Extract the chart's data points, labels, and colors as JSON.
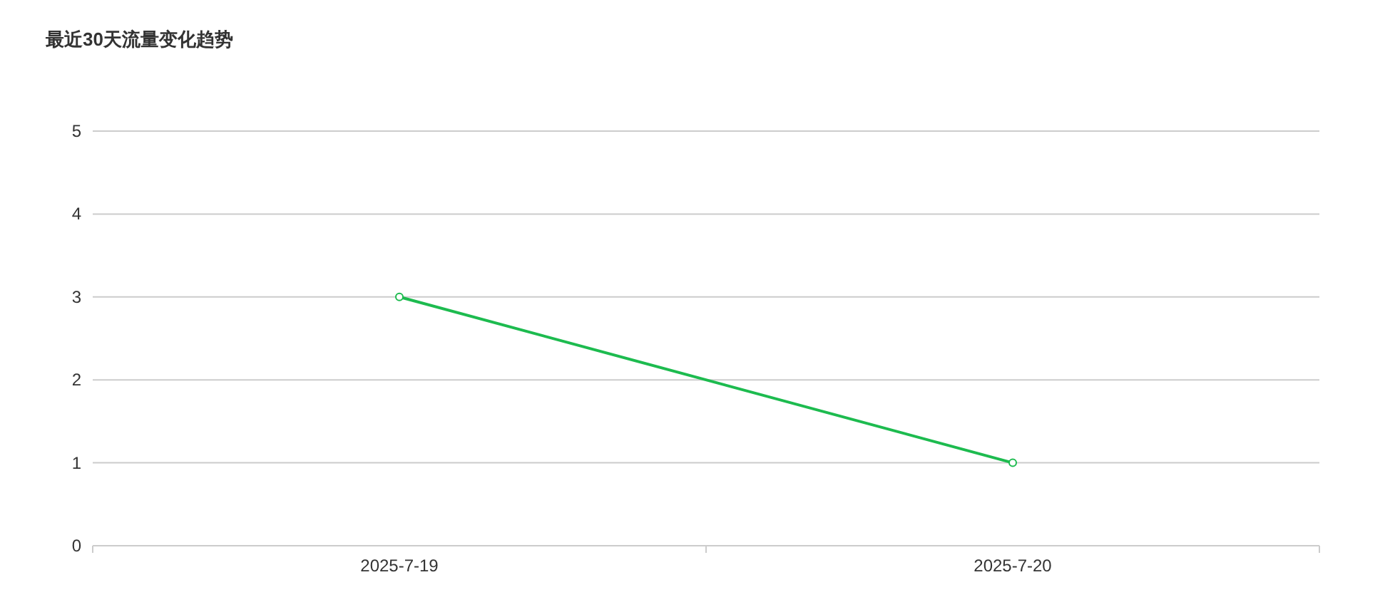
{
  "chart_data": {
    "type": "line",
    "title": "最近30天流量变化趋势",
    "categories": [
      "2025-7-19",
      "2025-7-20"
    ],
    "series": [
      {
        "color": "#1dbb4f",
        "values": [
          3,
          1
        ]
      }
    ],
    "ylim": [
      0,
      5
    ],
    "yticks": [
      0,
      1,
      2,
      3,
      4,
      5
    ],
    "grid": "y",
    "marker": "circle"
  }
}
